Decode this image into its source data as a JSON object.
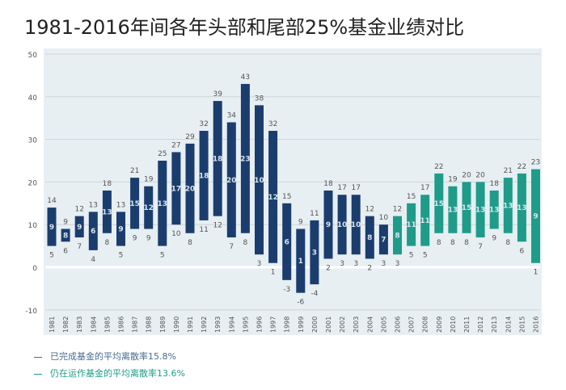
{
  "title": "1981-2016年间各年头部和尾部25%基金业绩对比",
  "chart_data": {
    "type": "bar",
    "subtype": "floating-range",
    "ylim": [
      -10,
      50
    ],
    "yticks": [
      -10,
      0,
      10,
      20,
      30,
      40,
      50
    ],
    "grid": true,
    "colors": {
      "completed": "#1b3d6e",
      "running": "#1f9c89"
    },
    "categories": [
      "1981",
      "1982",
      "1983",
      "1984",
      "1985",
      "1986",
      "1987",
      "1988",
      "1989",
      "1990",
      "1991",
      "1992",
      "1993",
      "1994",
      "1995",
      "1996",
      "1997",
      "1998",
      "1999",
      "2000",
      "2001",
      "2002",
      "2003",
      "2004",
      "2005",
      "2006",
      "2007",
      "2008",
      "2009",
      "2010",
      "2011",
      "2012",
      "2013",
      "2014",
      "2015",
      "2016"
    ],
    "low": [
      5,
      6,
      7,
      4,
      8,
      5,
      9,
      9,
      5,
      10,
      8,
      11,
      12,
      7,
      8,
      3,
      1,
      -3,
      -6,
      -4,
      2,
      3,
      3,
      2,
      3,
      3,
      5,
      5,
      8,
      8,
      8,
      7,
      9,
      8,
      6,
      1
    ],
    "high": [
      14,
      9,
      12,
      13,
      18,
      13,
      21,
      19,
      25,
      27,
      29,
      32,
      39,
      34,
      43,
      38,
      32,
      15,
      9,
      11,
      18,
      17,
      17,
      12,
      10,
      12,
      15,
      17,
      22,
      19,
      20,
      20,
      18,
      21,
      22,
      23
    ],
    "spread": [
      9,
      8,
      9,
      6,
      13,
      9,
      15,
      12,
      13,
      17,
      20,
      18,
      18,
      20,
      23,
      10,
      12,
      6,
      1,
      3,
      9,
      10,
      10,
      8,
      7,
      8,
      11,
      11,
      15,
      13,
      15,
      13,
      13,
      13,
      13,
      9
    ],
    "group": [
      "completed",
      "completed",
      "completed",
      "completed",
      "completed",
      "completed",
      "completed",
      "completed",
      "completed",
      "completed",
      "completed",
      "completed",
      "completed",
      "completed",
      "completed",
      "completed",
      "completed",
      "completed",
      "completed",
      "completed",
      "completed",
      "completed",
      "completed",
      "completed",
      "completed",
      "running",
      "running",
      "running",
      "running",
      "running",
      "running",
      "running",
      "running",
      "running",
      "running",
      "running"
    ]
  },
  "legend": [
    {
      "label": "已完成基金的平均离散率15.8%",
      "color": "#4a6a93"
    },
    {
      "label": "仍在运作基金的平均离散率13.6%",
      "color": "#1f9c89"
    }
  ]
}
